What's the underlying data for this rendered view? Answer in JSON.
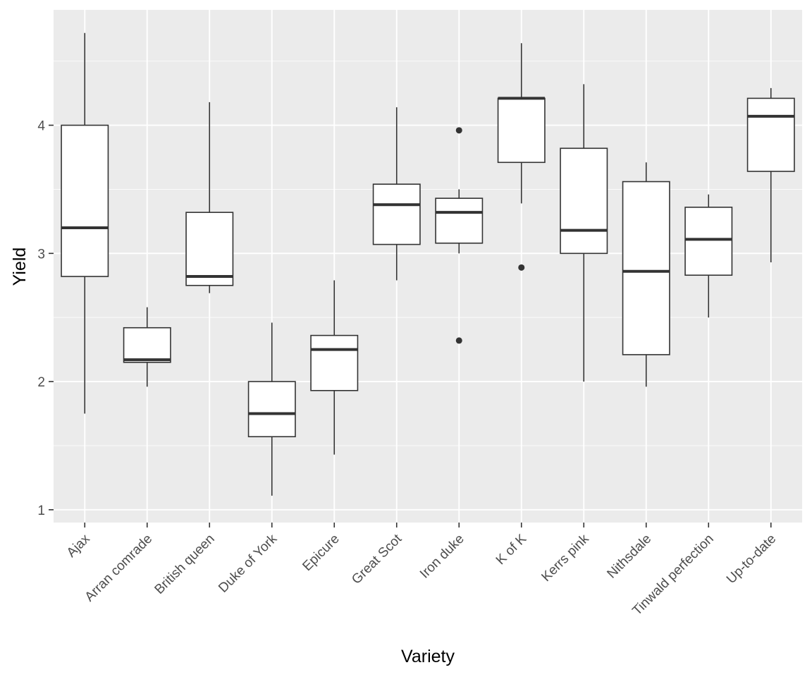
{
  "chart_data": {
    "type": "boxplot",
    "title": "",
    "xlabel": "Variety",
    "ylabel": "Yield",
    "ylim": [
      0.9,
      4.9
    ],
    "y_ticks": [
      1,
      2,
      3,
      4
    ],
    "grid": true,
    "legend": "none",
    "categories": [
      "Ajax",
      "Arran comrade",
      "British queen",
      "Duke of York",
      "Epicure",
      "Great Scot",
      "Iron duke",
      "K of K",
      "Kerrs pink",
      "Nithsdale",
      "Tinwald perfection",
      "Up-to-date"
    ],
    "boxes": [
      {
        "lower_whisker": 1.75,
        "q1": 2.82,
        "median": 3.2,
        "q3": 4.0,
        "upper_whisker": 4.72,
        "outliers": []
      },
      {
        "lower_whisker": 1.96,
        "q1": 2.15,
        "median": 2.17,
        "q3": 2.42,
        "upper_whisker": 2.58,
        "outliers": []
      },
      {
        "lower_whisker": 2.69,
        "q1": 2.75,
        "median": 2.82,
        "q3": 3.32,
        "upper_whisker": 4.18,
        "outliers": []
      },
      {
        "lower_whisker": 1.11,
        "q1": 1.57,
        "median": 1.75,
        "q3": 2.0,
        "upper_whisker": 2.46,
        "outliers": []
      },
      {
        "lower_whisker": 1.43,
        "q1": 1.93,
        "median": 2.25,
        "q3": 2.36,
        "upper_whisker": 2.79,
        "outliers": []
      },
      {
        "lower_whisker": 2.79,
        "q1": 3.07,
        "median": 3.38,
        "q3": 3.54,
        "upper_whisker": 4.14,
        "outliers": []
      },
      {
        "lower_whisker": 3.0,
        "q1": 3.08,
        "median": 3.32,
        "q3": 3.43,
        "upper_whisker": 3.5,
        "outliers": [
          3.96,
          2.32
        ]
      },
      {
        "lower_whisker": 3.39,
        "q1": 3.71,
        "median": 4.21,
        "q3": 4.21,
        "upper_whisker": 4.64,
        "outliers": [
          2.89
        ]
      },
      {
        "lower_whisker": 2.0,
        "q1": 3.0,
        "median": 3.18,
        "q3": 3.82,
        "upper_whisker": 4.32,
        "outliers": []
      },
      {
        "lower_whisker": 1.96,
        "q1": 2.21,
        "median": 2.86,
        "q3": 3.56,
        "upper_whisker": 3.71,
        "outliers": []
      },
      {
        "lower_whisker": 2.5,
        "q1": 2.83,
        "median": 3.11,
        "q3": 3.36,
        "upper_whisker": 3.46,
        "outliers": []
      },
      {
        "lower_whisker": 2.93,
        "q1": 3.64,
        "median": 4.07,
        "q3": 4.21,
        "upper_whisker": 4.29,
        "outliers": []
      }
    ],
    "colors": {
      "panel": "#ebebeb",
      "grid_major": "#ffffff",
      "box_fill": "#ffffff",
      "box_line": "#333333",
      "tick": "#333333"
    }
  }
}
